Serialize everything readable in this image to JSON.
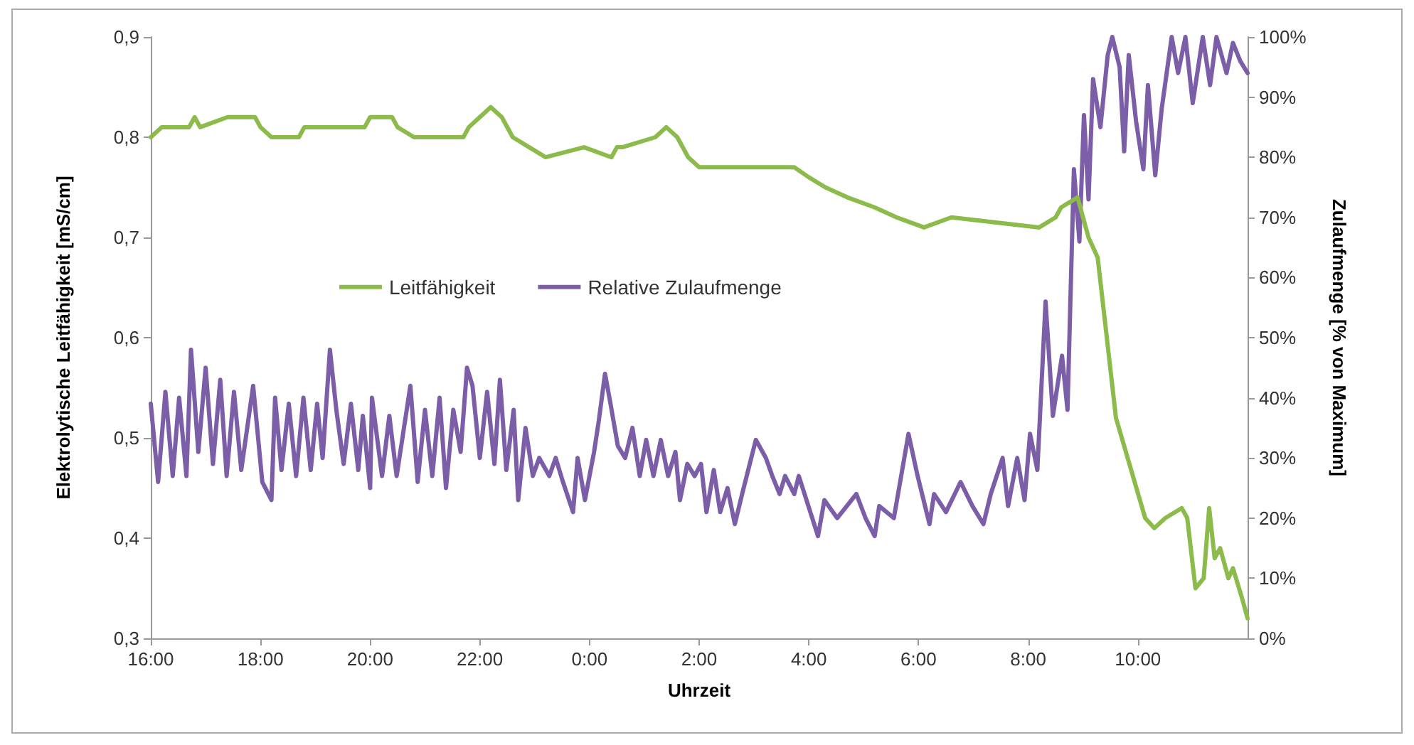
{
  "chart_data": {
    "type": "line",
    "xlabel": "Uhrzeit",
    "ylabel": "Elektrolytische Leitfähigkeit [mS/cm]",
    "y2label": "Zulaufmenge [% von Maximum]",
    "xlim": [
      "2000-01-01T16:00",
      "2000-01-02T12:00"
    ],
    "xticks": [
      {
        "value": "2000-01-01T16:00",
        "label": "16:00"
      },
      {
        "value": "2000-01-01T18:00",
        "label": "18:00"
      },
      {
        "value": "2000-01-01T20:00",
        "label": "20:00"
      },
      {
        "value": "2000-01-01T22:00",
        "label": "22:00"
      },
      {
        "value": "2000-01-02T00:00",
        "label": "0:00"
      },
      {
        "value": "2000-01-02T02:00",
        "label": "2:00"
      },
      {
        "value": "2000-01-02T04:00",
        "label": "4:00"
      },
      {
        "value": "2000-01-02T06:00",
        "label": "6:00"
      },
      {
        "value": "2000-01-02T08:00",
        "label": "8:00"
      },
      {
        "value": "2000-01-02T10:00",
        "label": "10:00"
      }
    ],
    "ylim": [
      0.3,
      0.9
    ],
    "yticks": [
      {
        "value": 0.3,
        "label": "0,3"
      },
      {
        "value": 0.4,
        "label": "0,4"
      },
      {
        "value": 0.5,
        "label": "0,5"
      },
      {
        "value": 0.6,
        "label": "0,6"
      },
      {
        "value": 0.7,
        "label": "0,7"
      },
      {
        "value": 0.8,
        "label": "0,8"
      },
      {
        "value": 0.9,
        "label": "0,9"
      }
    ],
    "y2lim": [
      0,
      100
    ],
    "y2ticks": [
      {
        "value": 0,
        "label": "0%"
      },
      {
        "value": 10,
        "label": "10%"
      },
      {
        "value": 20,
        "label": "20%"
      },
      {
        "value": 30,
        "label": "30%"
      },
      {
        "value": 40,
        "label": "40%"
      },
      {
        "value": 50,
        "label": "50%"
      },
      {
        "value": 60,
        "label": "60%"
      },
      {
        "value": 70,
        "label": "70%"
      },
      {
        "value": 80,
        "label": "80%"
      },
      {
        "value": 90,
        "label": "90%"
      },
      {
        "value": 100,
        "label": "100%"
      }
    ],
    "grid": false,
    "legend": "center left",
    "marker": "none",
    "line_style": "solid",
    "series": [
      {
        "name": "Leitfähigkeit",
        "color": "#8cbb4c",
        "x": [
          "2000-01-01T16:00",
          "2000-01-01T16:12",
          "2000-01-01T16:42",
          "2000-01-01T16:48",
          "2000-01-01T16:54",
          "2000-01-01T17:24",
          "2000-01-01T17:54",
          "2000-01-01T18:00",
          "2000-01-01T18:12",
          "2000-01-01T18:42",
          "2000-01-01T18:48",
          "2000-01-01T19:54",
          "2000-01-01T20:00",
          "2000-01-01T20:24",
          "2000-01-01T20:30",
          "2000-01-01T20:48",
          "2000-01-01T21:42",
          "2000-01-01T21:48",
          "2000-01-01T22:00",
          "2000-01-01T22:12",
          "2000-01-01T22:24",
          "2000-01-01T22:36",
          "2000-01-01T22:54",
          "2000-01-01T23:12",
          "2000-01-01T23:54",
          "2000-01-02T00:24",
          "2000-01-02T00:30",
          "2000-01-02T00:36",
          "2000-01-02T01:12",
          "2000-01-02T01:24",
          "2000-01-02T01:36",
          "2000-01-02T01:48",
          "2000-01-02T02:00",
          "2000-01-02T03:44",
          "2000-01-02T04:00",
          "2000-01-02T04:18",
          "2000-01-02T04:42",
          "2000-01-02T05:12",
          "2000-01-02T05:36",
          "2000-01-02T06:06",
          "2000-01-02T06:36",
          "2000-01-02T08:12",
          "2000-01-02T08:30",
          "2000-01-02T08:36",
          "2000-01-02T08:54",
          "2000-01-02T09:06",
          "2000-01-02T09:16",
          "2000-01-02T09:36",
          "2000-01-02T10:08",
          "2000-01-02T10:18",
          "2000-01-02T10:30",
          "2000-01-02T10:48",
          "2000-01-02T10:54",
          "2000-01-02T11:03",
          "2000-01-02T11:12",
          "2000-01-02T11:18",
          "2000-01-02T11:24",
          "2000-01-02T11:30",
          "2000-01-02T11:39",
          "2000-01-02T11:44",
          "2000-01-02T11:54",
          "2000-01-02T12:00"
        ],
        "values": [
          0.8,
          0.81,
          0.81,
          0.82,
          0.81,
          0.82,
          0.82,
          0.81,
          0.8,
          0.8,
          0.81,
          0.81,
          0.82,
          0.82,
          0.81,
          0.8,
          0.8,
          0.81,
          0.82,
          0.83,
          0.82,
          0.8,
          0.79,
          0.78,
          0.79,
          0.78,
          0.79,
          0.79,
          0.8,
          0.81,
          0.8,
          0.78,
          0.77,
          0.77,
          0.76,
          0.75,
          0.74,
          0.73,
          0.72,
          0.71,
          0.72,
          0.71,
          0.72,
          0.73,
          0.74,
          0.7,
          0.68,
          0.52,
          0.42,
          0.41,
          0.42,
          0.43,
          0.42,
          0.35,
          0.36,
          0.43,
          0.38,
          0.39,
          0.36,
          0.37,
          0.34,
          0.32
        ]
      },
      {
        "name": "Relative Zulaufmenge",
        "color": "#7b5ea7",
        "axis": "y2",
        "x": [
          "2000-01-01T16:00",
          "2000-01-01T16:08",
          "2000-01-01T16:16",
          "2000-01-01T16:24",
          "2000-01-01T16:31",
          "2000-01-01T16:39",
          "2000-01-01T16:44",
          "2000-01-01T16:52",
          "2000-01-01T17:00",
          "2000-01-01T17:08",
          "2000-01-01T17:16",
          "2000-01-01T17:23",
          "2000-01-01T17:31",
          "2000-01-01T17:39",
          "2000-01-01T17:52",
          "2000-01-01T18:02",
          "2000-01-01T18:12",
          "2000-01-01T18:16",
          "2000-01-01T18:23",
          "2000-01-01T18:31",
          "2000-01-01T18:39",
          "2000-01-01T18:47",
          "2000-01-01T18:55",
          "2000-01-01T19:02",
          "2000-01-01T19:08",
          "2000-01-01T19:16",
          "2000-01-01T19:23",
          "2000-01-01T19:31",
          "2000-01-01T19:39",
          "2000-01-01T19:47",
          "2000-01-01T19:52",
          "2000-01-01T20:00",
          "2000-01-01T20:02",
          "2000-01-01T20:13",
          "2000-01-01T20:21",
          "2000-01-01T20:29",
          "2000-01-01T20:44",
          "2000-01-01T20:52",
          "2000-01-01T21:00",
          "2000-01-01T21:08",
          "2000-01-01T21:16",
          "2000-01-01T21:23",
          "2000-01-01T21:31",
          "2000-01-01T21:39",
          "2000-01-01T21:46",
          "2000-01-01T21:52",
          "2000-01-01T22:00",
          "2000-01-01T22:08",
          "2000-01-01T22:16",
          "2000-01-01T22:22",
          "2000-01-01T22:29",
          "2000-01-01T22:37",
          "2000-01-01T22:42",
          "2000-01-01T22:50",
          "2000-01-01T22:58",
          "2000-01-01T23:05",
          "2000-01-01T23:16",
          "2000-01-01T23:23",
          "2000-01-01T23:31",
          "2000-01-01T23:42",
          "2000-01-01T23:47",
          "2000-01-01T23:55",
          "2000-01-02T00:05",
          "2000-01-02T00:10",
          "2000-01-02T00:17",
          "2000-01-02T00:23",
          "2000-01-02T00:31",
          "2000-01-02T00:39",
          "2000-01-02T00:47",
          "2000-01-02T00:55",
          "2000-01-02T01:02",
          "2000-01-02T01:10",
          "2000-01-02T01:18",
          "2000-01-02T01:26",
          "2000-01-02T01:34",
          "2000-01-02T01:39",
          "2000-01-02T01:47",
          "2000-01-02T01:55",
          "2000-01-02T02:02",
          "2000-01-02T02:08",
          "2000-01-02T02:16",
          "2000-01-02T02:23",
          "2000-01-02T02:31",
          "2000-01-02T02:39",
          "2000-01-02T02:47",
          "2000-01-02T03:02",
          "2000-01-02T03:13",
          "2000-01-02T03:20",
          "2000-01-02T03:28",
          "2000-01-02T03:34",
          "2000-01-02T03:44",
          "2000-01-02T03:49",
          "2000-01-02T04:10",
          "2000-01-02T04:17",
          "2000-01-02T04:31",
          "2000-01-02T04:52",
          "2000-01-02T05:02",
          "2000-01-02T05:12",
          "2000-01-02T05:17",
          "2000-01-02T05:33",
          "2000-01-02T05:49",
          "2000-01-02T05:59",
          "2000-01-02T06:12",
          "2000-01-02T06:17",
          "2000-01-02T06:30",
          "2000-01-02T06:46",
          "2000-01-02T06:59",
          "2000-01-02T07:11",
          "2000-01-02T07:19",
          "2000-01-02T07:32",
          "2000-01-02T07:38",
          "2000-01-02T07:48",
          "2000-01-02T07:56",
          "2000-01-02T08:02",
          "2000-01-02T08:10",
          "2000-01-02T08:19",
          "2000-01-02T08:27",
          "2000-01-02T08:37",
          "2000-01-02T08:43",
          "2000-01-02T08:50",
          "2000-01-02T08:56",
          "2000-01-02T09:01",
          "2000-01-02T09:06",
          "2000-01-02T09:11",
          "2000-01-02T09:19",
          "2000-01-02T09:27",
          "2000-01-02T09:32",
          "2000-01-02T09:40",
          "2000-01-02T09:45",
          "2000-01-02T09:50",
          "2000-01-02T09:58",
          "2000-01-02T10:06",
          "2000-01-02T10:11",
          "2000-01-02T10:19",
          "2000-01-02T10:26",
          "2000-01-02T10:37",
          "2000-01-02T10:44",
          "2000-01-02T10:52",
          "2000-01-02T11:00",
          "2000-01-02T11:11",
          "2000-01-02T11:19",
          "2000-01-02T11:26",
          "2000-01-02T11:37",
          "2000-01-02T11:44",
          "2000-01-02T11:52",
          "2000-01-02T12:00"
        ],
        "values": [
          39,
          26,
          41,
          27,
          40,
          27,
          48,
          31,
          45,
          29,
          43,
          27,
          41,
          28,
          42,
          26,
          23,
          40,
          28,
          39,
          27,
          40,
          28,
          39,
          30,
          48,
          38,
          29,
          39,
          28,
          37,
          25,
          40,
          27,
          37,
          27,
          42,
          26,
          38,
          27,
          40,
          25,
          38,
          31,
          45,
          42,
          30,
          41,
          29,
          43,
          28,
          38,
          23,
          35,
          27,
          30,
          27,
          30,
          26,
          21,
          30,
          23,
          31,
          36,
          44,
          39,
          32,
          30,
          35,
          27,
          33,
          27,
          33,
          27,
          31,
          23,
          29,
          27,
          29,
          21,
          28,
          21,
          25,
          19,
          24,
          33,
          30,
          27,
          24,
          27,
          24,
          27,
          17,
          23,
          20,
          24,
          20,
          17,
          22,
          20,
          34,
          27,
          19,
          24,
          21,
          26,
          22,
          19,
          24,
          30,
          22,
          30,
          23,
          34,
          28,
          56,
          37,
          47,
          38,
          78,
          66,
          87,
          73,
          93,
          85,
          97,
          100,
          95,
          81,
          97,
          86,
          78,
          92,
          77,
          88,
          100,
          94,
          100,
          89,
          100,
          92,
          100,
          94,
          99,
          96,
          94
        ]
      }
    ]
  }
}
